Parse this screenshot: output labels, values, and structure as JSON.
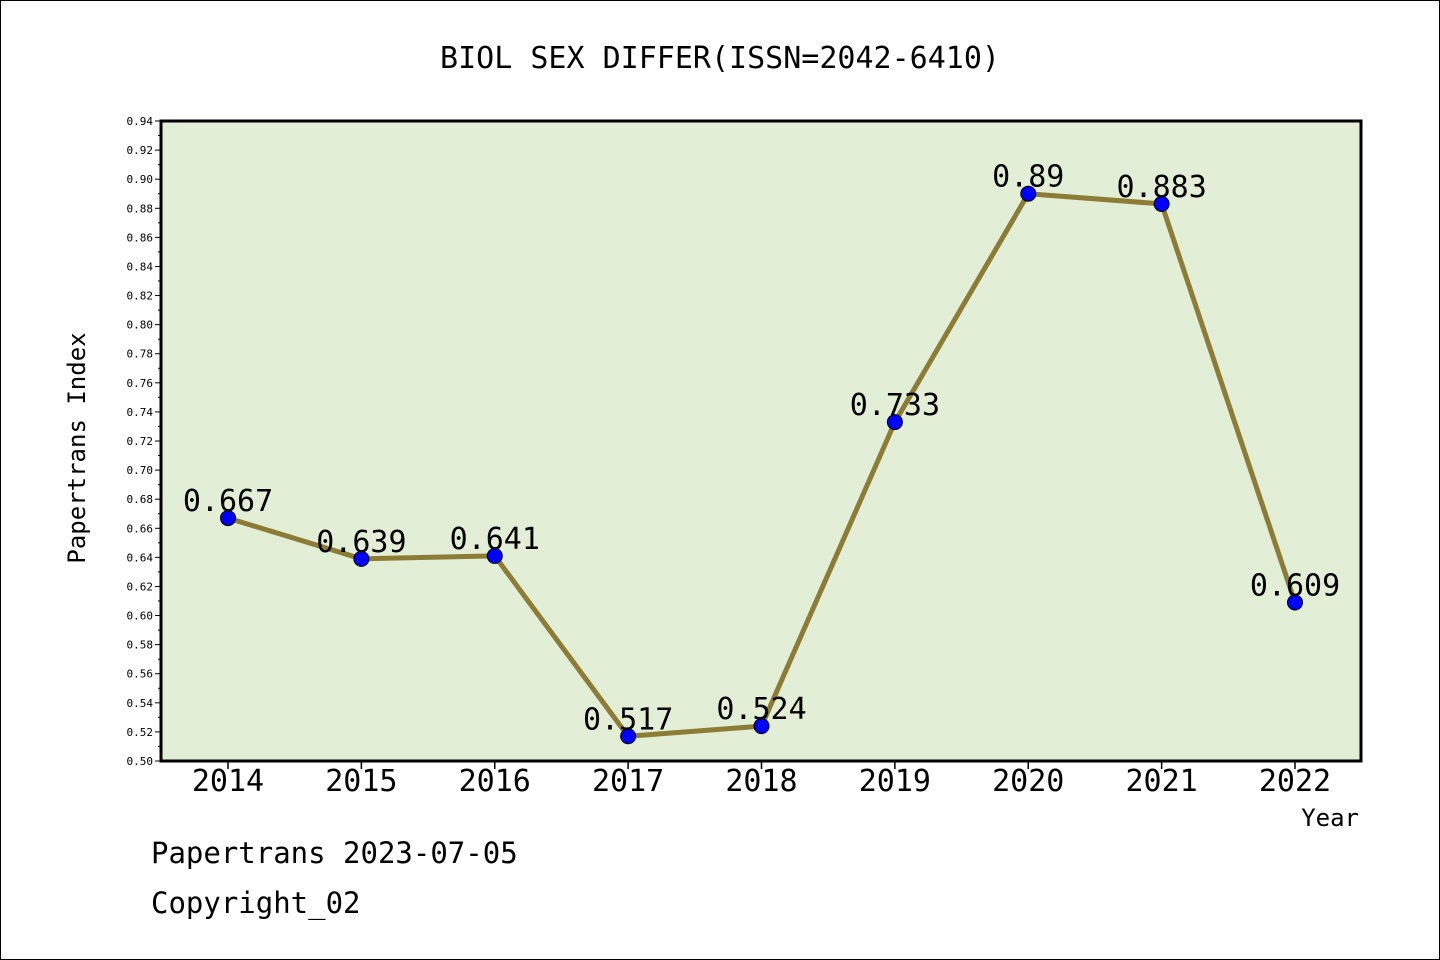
{
  "chart_data": {
    "type": "line",
    "title": "BIOL SEX DIFFER(ISSN=2042-6410)",
    "xlabel": "Year",
    "ylabel": "Papertrans Index",
    "categories": [
      "2014",
      "2015",
      "2016",
      "2017",
      "2018",
      "2019",
      "2020",
      "2021",
      "2022"
    ],
    "values": [
      0.667,
      0.639,
      0.641,
      0.517,
      0.524,
      0.733,
      0.89,
      0.883,
      0.609
    ],
    "data_labels": [
      "0.667",
      "0.639",
      "0.641",
      "0.517",
      "0.524",
      "0.733",
      "0.89",
      "0.883",
      "0.609"
    ],
    "ylim": [
      0.5,
      0.94
    ],
    "yticks": [
      "0.50",
      "0.52",
      "0.54",
      "0.56",
      "0.58",
      "0.60",
      "0.62",
      "0.64",
      "0.66",
      "0.68",
      "0.70",
      "0.72",
      "0.74",
      "0.76",
      "0.78",
      "0.80",
      "0.82",
      "0.84",
      "0.86",
      "0.88",
      "0.90",
      "0.92",
      "0.94"
    ],
    "grid": false,
    "colors": {
      "plot_background": "#e2efd6",
      "line": "#8c7c35",
      "marker": "#0000ff"
    }
  },
  "footer": {
    "date_line": "Papertrans 2023-07-05",
    "copyright_line": "Copyright_02"
  }
}
